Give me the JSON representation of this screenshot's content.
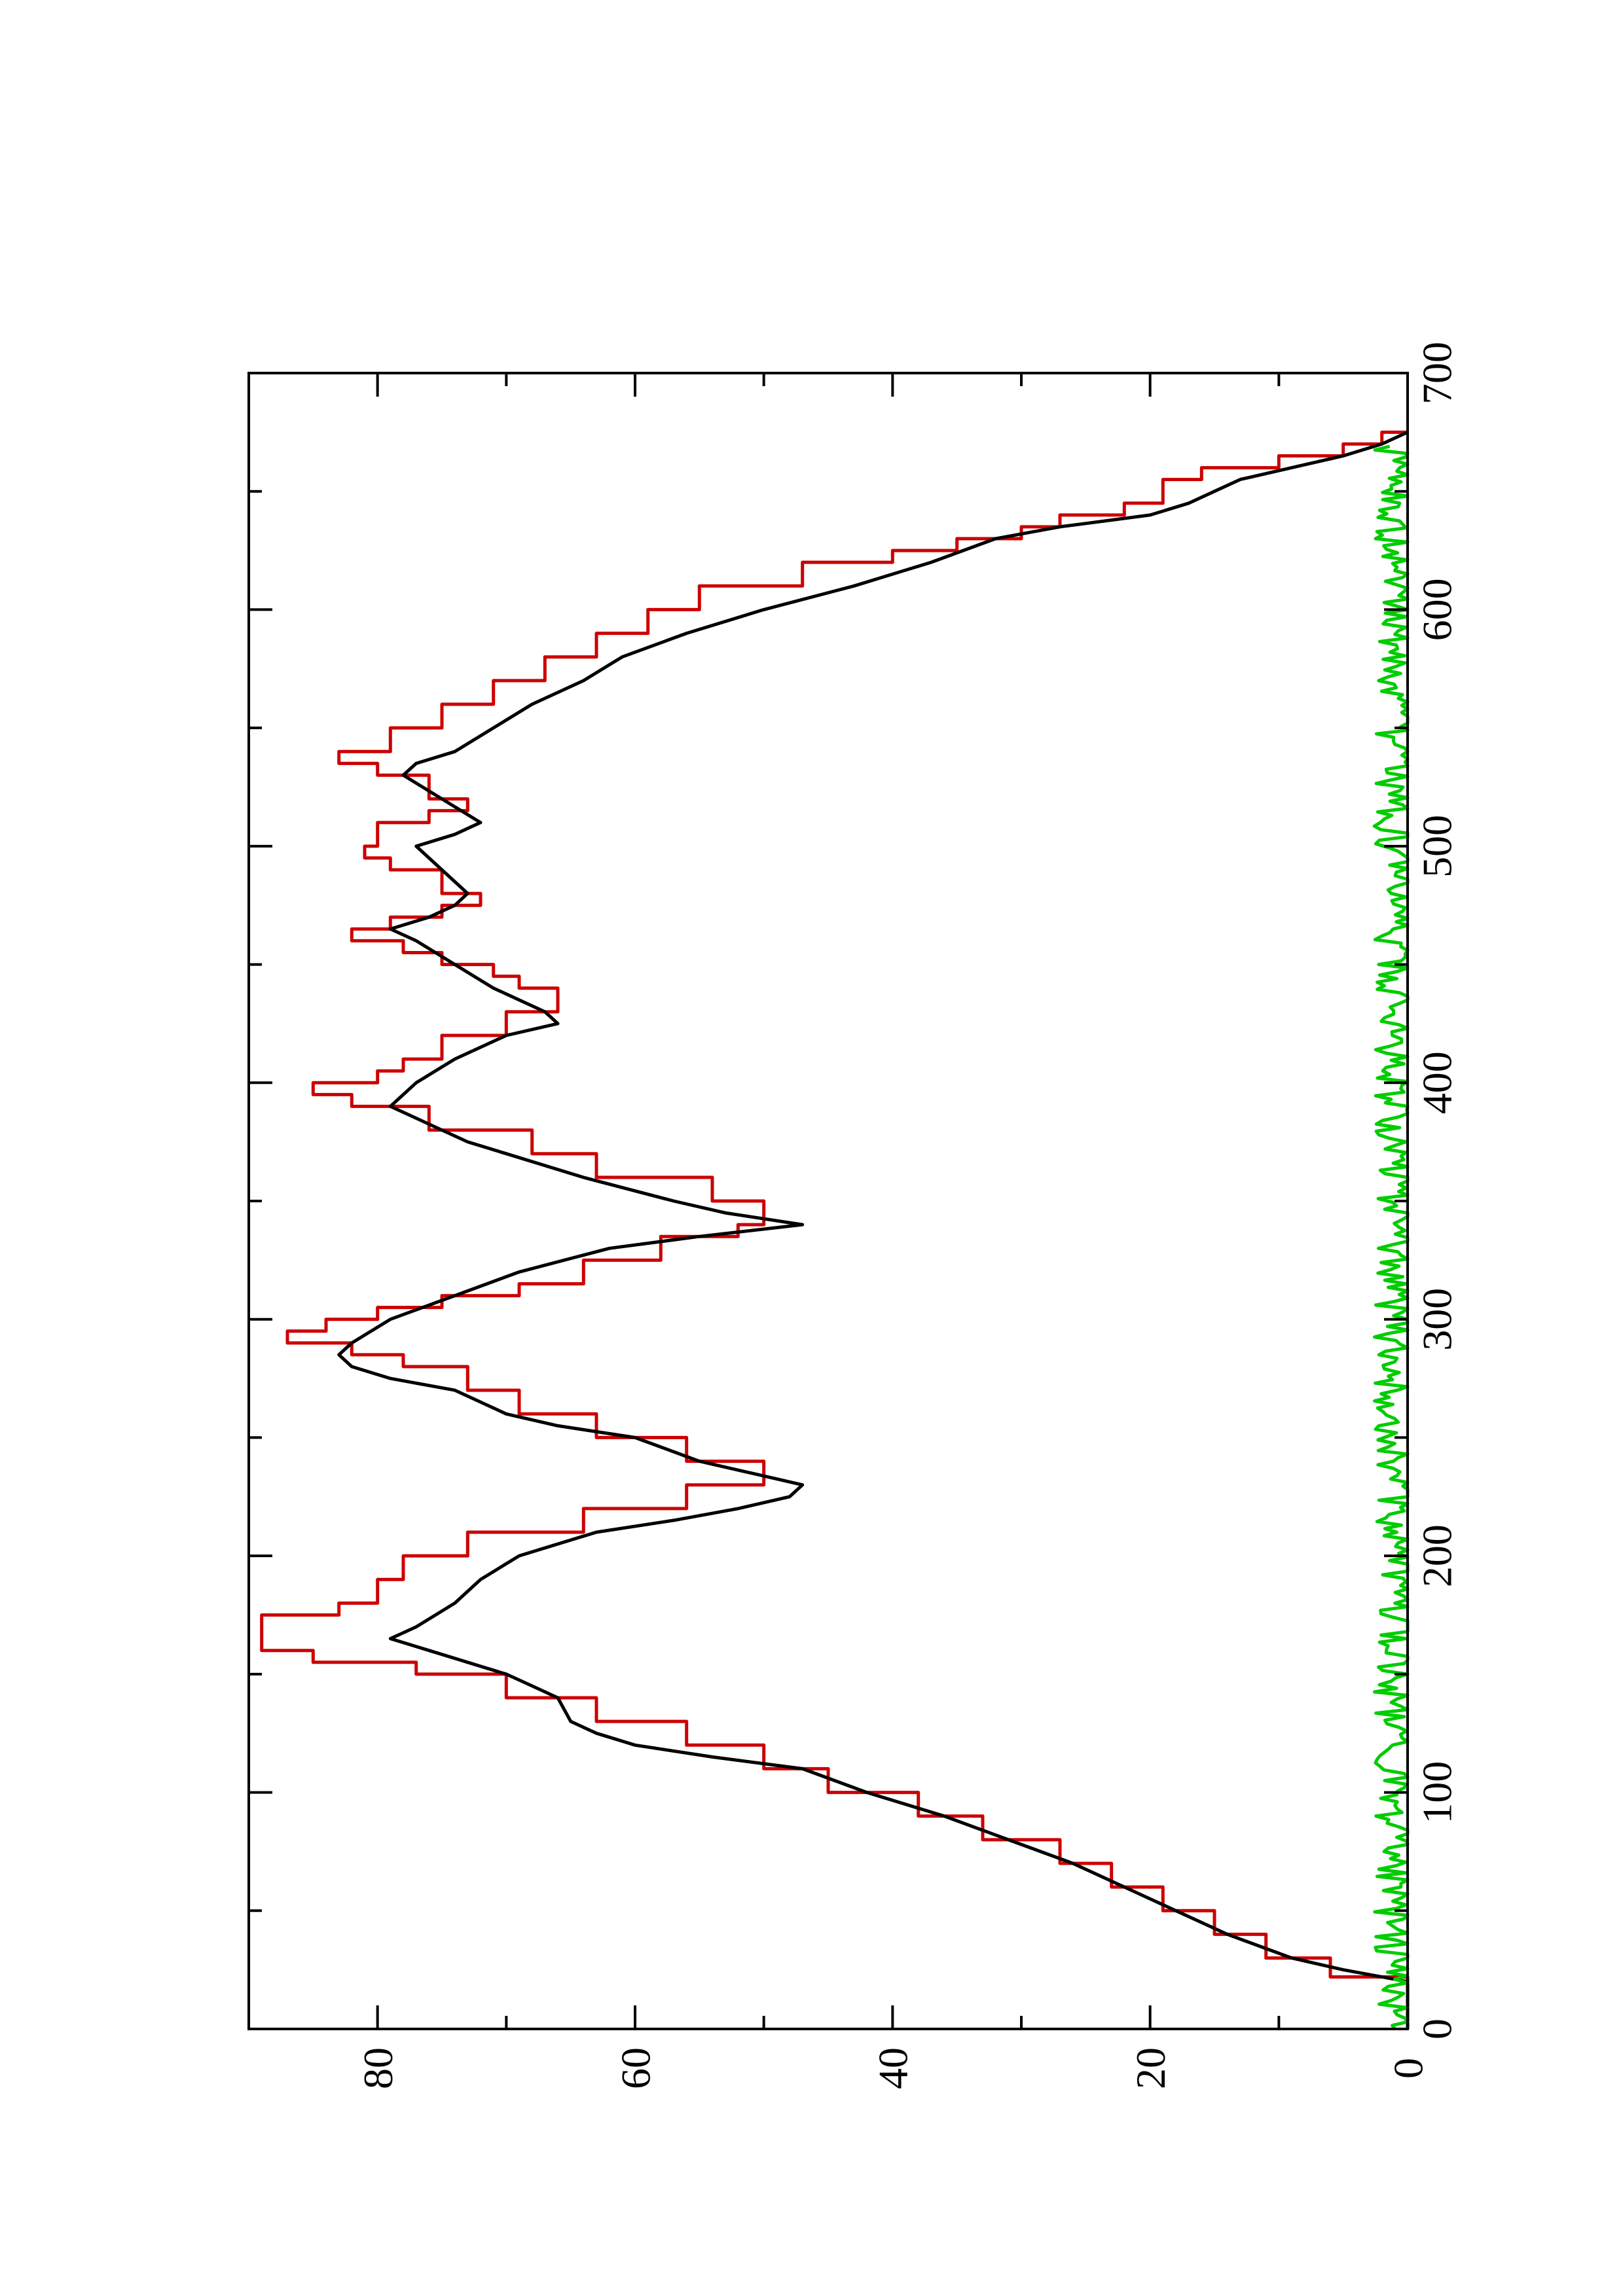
{
  "chart_data": {
    "type": "line",
    "orientation": "rotated-90-ccw",
    "title": "",
    "xlabel": "",
    "ylabel": "",
    "xlim": [
      0,
      700
    ],
    "ylim": [
      0,
      90
    ],
    "x_ticks": [
      "0",
      "100",
      "200",
      "300",
      "400",
      "500",
      "600",
      "700"
    ],
    "y_ticks": [
      "0",
      "20",
      "40",
      "60",
      "80"
    ],
    "grid": false,
    "legend": "none",
    "series": [
      {
        "color": "#cc0000",
        "style": "step",
        "points": [
          [
            0,
            0
          ],
          [
            20,
            0
          ],
          [
            22,
            6
          ],
          [
            30,
            11
          ],
          [
            40,
            15
          ],
          [
            50,
            19
          ],
          [
            60,
            23
          ],
          [
            70,
            27
          ],
          [
            80,
            33
          ],
          [
            90,
            38
          ],
          [
            100,
            45
          ],
          [
            110,
            50
          ],
          [
            120,
            56
          ],
          [
            130,
            63
          ],
          [
            140,
            70
          ],
          [
            150,
            77
          ],
          [
            155,
            85
          ],
          [
            160,
            89
          ],
          [
            170,
            89
          ],
          [
            175,
            83
          ],
          [
            180,
            80
          ],
          [
            190,
            78
          ],
          [
            200,
            73
          ],
          [
            210,
            64
          ],
          [
            220,
            56
          ],
          [
            230,
            50
          ],
          [
            240,
            56
          ],
          [
            250,
            63
          ],
          [
            260,
            69
          ],
          [
            270,
            73
          ],
          [
            280,
            78
          ],
          [
            285,
            82
          ],
          [
            290,
            87
          ],
          [
            295,
            84
          ],
          [
            300,
            80
          ],
          [
            305,
            75
          ],
          [
            310,
            69
          ],
          [
            315,
            64
          ],
          [
            325,
            58
          ],
          [
            335,
            52
          ],
          [
            340,
            50
          ],
          [
            350,
            54
          ],
          [
            360,
            63
          ],
          [
            370,
            68
          ],
          [
            380,
            76
          ],
          [
            390,
            82
          ],
          [
            395,
            85
          ],
          [
            400,
            80
          ],
          [
            405,
            78
          ],
          [
            410,
            75
          ],
          [
            420,
            70
          ],
          [
            430,
            66
          ],
          [
            440,
            69
          ],
          [
            445,
            71
          ],
          [
            450,
            75
          ],
          [
            455,
            78
          ],
          [
            460,
            82
          ],
          [
            465,
            79
          ],
          [
            470,
            75
          ],
          [
            475,
            72
          ],
          [
            480,
            75
          ],
          [
            490,
            79
          ],
          [
            495,
            81
          ],
          [
            500,
            80
          ],
          [
            510,
            76
          ],
          [
            515,
            73
          ],
          [
            520,
            76
          ],
          [
            530,
            80
          ],
          [
            535,
            83
          ],
          [
            540,
            79
          ],
          [
            550,
            75
          ],
          [
            560,
            71
          ],
          [
            570,
            67
          ],
          [
            580,
            63
          ],
          [
            590,
            59
          ],
          [
            600,
            55
          ],
          [
            610,
            47
          ],
          [
            620,
            40
          ],
          [
            625,
            35
          ],
          [
            630,
            30
          ],
          [
            635,
            27
          ],
          [
            640,
            22
          ],
          [
            645,
            19
          ],
          [
            655,
            16
          ],
          [
            660,
            10
          ],
          [
            665,
            5
          ],
          [
            670,
            2
          ],
          [
            675,
            0
          ]
        ]
      },
      {
        "color": "#000000",
        "style": "line",
        "points": [
          [
            0,
            0
          ],
          [
            20,
            0
          ],
          [
            25,
            5
          ],
          [
            30,
            9
          ],
          [
            40,
            14
          ],
          [
            50,
            18
          ],
          [
            60,
            22
          ],
          [
            70,
            26
          ],
          [
            80,
            31
          ],
          [
            90,
            36
          ],
          [
            100,
            42
          ],
          [
            110,
            47
          ],
          [
            115,
            54
          ],
          [
            120,
            60
          ],
          [
            125,
            63
          ],
          [
            130,
            65
          ],
          [
            140,
            66
          ],
          [
            145,
            68
          ],
          [
            150,
            70
          ],
          [
            155,
            73
          ],
          [
            160,
            76
          ],
          [
            165,
            79
          ],
          [
            170,
            77
          ],
          [
            180,
            74
          ],
          [
            190,
            72
          ],
          [
            200,
            69
          ],
          [
            210,
            63
          ],
          [
            215,
            57
          ],
          [
            220,
            52
          ],
          [
            225,
            48
          ],
          [
            230,
            47
          ],
          [
            235,
            51
          ],
          [
            240,
            55
          ],
          [
            250,
            60
          ],
          [
            255,
            66
          ],
          [
            260,
            70
          ],
          [
            270,
            74
          ],
          [
            275,
            79
          ],
          [
            280,
            82
          ],
          [
            285,
            83
          ],
          [
            290,
            82
          ],
          [
            300,
            79
          ],
          [
            310,
            74
          ],
          [
            320,
            69
          ],
          [
            330,
            62
          ],
          [
            335,
            55
          ],
          [
            340,
            47
          ],
          [
            345,
            53
          ],
          [
            350,
            57
          ],
          [
            360,
            64
          ],
          [
            370,
            70
          ],
          [
            375,
            73
          ],
          [
            380,
            75
          ],
          [
            385,
            77
          ],
          [
            390,
            79
          ],
          [
            395,
            78
          ],
          [
            400,
            77
          ],
          [
            410,
            74
          ],
          [
            420,
            70
          ],
          [
            425,
            66
          ],
          [
            430,
            67
          ],
          [
            440,
            71
          ],
          [
            450,
            74
          ],
          [
            460,
            77
          ],
          [
            465,
            79
          ],
          [
            470,
            76
          ],
          [
            475,
            74
          ],
          [
            480,
            73
          ],
          [
            490,
            75
          ],
          [
            500,
            77
          ],
          [
            505,
            74
          ],
          [
            510,
            72
          ],
          [
            520,
            75
          ],
          [
            530,
            78
          ],
          [
            535,
            77
          ],
          [
            540,
            74
          ],
          [
            550,
            71
          ],
          [
            560,
            68
          ],
          [
            570,
            64
          ],
          [
            580,
            61
          ],
          [
            590,
            56
          ],
          [
            600,
            50
          ],
          [
            610,
            43
          ],
          [
            620,
            37
          ],
          [
            630,
            32
          ],
          [
            635,
            27
          ],
          [
            640,
            20
          ],
          [
            645,
            17
          ],
          [
            650,
            15
          ],
          [
            655,
            13
          ],
          [
            660,
            9
          ],
          [
            665,
            5
          ],
          [
            670,
            2
          ],
          [
            675,
            0
          ]
        ]
      },
      {
        "color": "#00cc00",
        "style": "noisy-baseline",
        "level": 1,
        "amplitude": 1.6,
        "x_range": [
          0,
          670
        ]
      }
    ]
  }
}
